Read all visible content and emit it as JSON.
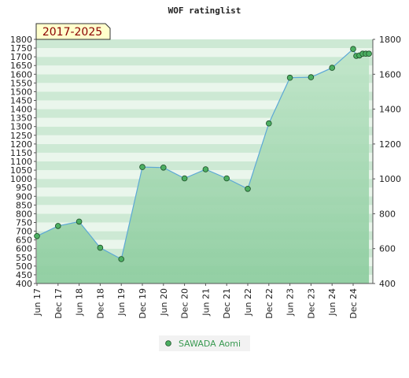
{
  "chart_data": {
    "type": "area",
    "title": "WOF ratinglist",
    "period_badge": "2017-2025",
    "left_axis": {
      "ylim": [
        400,
        1800
      ],
      "ticks": [
        400,
        450,
        500,
        550,
        600,
        650,
        700,
        750,
        800,
        850,
        900,
        950,
        1000,
        1050,
        1100,
        1150,
        1200,
        1250,
        1300,
        1350,
        1400,
        1450,
        1500,
        1550,
        1600,
        1650,
        1700,
        1750,
        1800
      ]
    },
    "right_axis": {
      "ylim": [
        400,
        1800
      ],
      "ticks": [
        400,
        600,
        800,
        1000,
        1200,
        1400,
        1600,
        1800
      ]
    },
    "x_ticks": [
      "Jun 17",
      "Dec 17",
      "Jun 18",
      "Dec 18",
      "Jun 19",
      "Dec 19",
      "Jun 20",
      "Dec 20",
      "Jun 21",
      "Dec 21",
      "Jun 22",
      "Dec 22",
      "Jun 23",
      "Dec 23",
      "Jun 24",
      "Dec 24"
    ],
    "series": [
      {
        "name": "SAWADA Aomi",
        "points": [
          {
            "x": 0,
            "y": 672
          },
          {
            "x": 1,
            "y": 730
          },
          {
            "x": 2,
            "y": 755
          },
          {
            "x": 3,
            "y": 605
          },
          {
            "x": 4,
            "y": 540
          },
          {
            "x": 5,
            "y": 1068
          },
          {
            "x": 6,
            "y": 1065
          },
          {
            "x": 7,
            "y": 1003
          },
          {
            "x": 8,
            "y": 1055
          },
          {
            "x": 9,
            "y": 1003
          },
          {
            "x": 10,
            "y": 943
          },
          {
            "x": 11,
            "y": 1318
          },
          {
            "x": 12,
            "y": 1580
          },
          {
            "x": 13,
            "y": 1583
          },
          {
            "x": 14,
            "y": 1637
          },
          {
            "x": 15,
            "y": 1745
          },
          {
            "x": 15.15,
            "y": 1705
          },
          {
            "x": 15.3,
            "y": 1708
          },
          {
            "x": 15.45,
            "y": 1718
          },
          {
            "x": 15.6,
            "y": 1718
          },
          {
            "x": 15.75,
            "y": 1718
          }
        ]
      }
    ],
    "colors": {
      "area_top": "#bfe5c8",
      "area_bottom": "#8ccc9e",
      "band_light": "#eaf6ec",
      "band_dark": "#cde9d4",
      "line": "#5ca8d6",
      "marker": "#4caf62",
      "legend_text": "#3a9a52",
      "badge_bg": "#ffffcc",
      "badge_text": "#8b0000"
    }
  }
}
